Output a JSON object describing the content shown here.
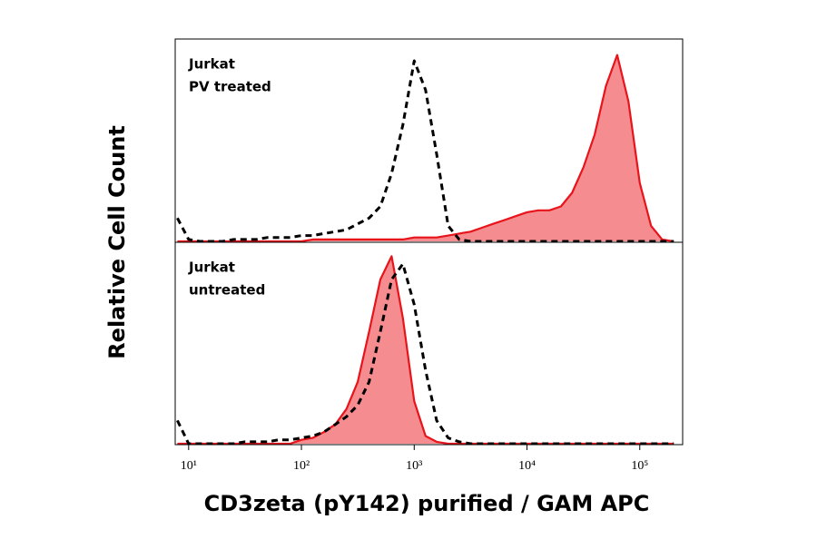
{
  "chart_data": [
    {
      "type": "line",
      "ylabel": "Relative Cell Count",
      "labels": [
        "Jurkat",
        "PV treated"
      ],
      "xscale": "log",
      "xlim": [
        7.6,
        240000
      ],
      "ylim": [
        0,
        100
      ],
      "x": [
        7.94,
        10,
        12.6,
        15.8,
        20,
        25.1,
        31.6,
        39.8,
        50.1,
        63.1,
        79.4,
        100,
        126,
        158,
        200,
        251,
        316,
        398,
        501,
        631,
        794,
        1000,
        1260,
        1580,
        2000,
        2510,
        3160,
        3980,
        5010,
        6310,
        7940,
        10000,
        12600,
        15800,
        20000,
        25100,
        31600,
        39800,
        50100,
        63100,
        79400,
        100000,
        126000,
        158000,
        200000
      ],
      "series": [
        {
          "color": "#e8141b",
          "fill": "#f58c8f",
          "values": [
            0,
            0,
            0,
            0,
            0,
            0,
            0,
            0,
            0,
            0,
            0,
            0,
            1,
            1,
            1,
            1,
            1,
            1,
            1,
            1,
            1,
            2,
            2,
            2,
            3,
            4,
            5,
            7,
            9,
            11,
            13,
            15,
            16,
            16,
            18,
            25,
            38,
            55,
            80,
            96,
            72,
            30,
            8,
            1,
            0
          ]
        },
        {
          "color": "#000000",
          "dash": true,
          "values": [
            12,
            1,
            0,
            0,
            0,
            1,
            1,
            1,
            2,
            2,
            2,
            3,
            3,
            4,
            5,
            6,
            9,
            12,
            18,
            35,
            60,
            93,
            78,
            45,
            8,
            1,
            0,
            0,
            0,
            0,
            0,
            0,
            0,
            0,
            0,
            0,
            0,
            0,
            0,
            0,
            0,
            0,
            0,
            0,
            0
          ]
        }
      ]
    },
    {
      "type": "line",
      "labels": [
        "Jurkat",
        "untreated"
      ],
      "xlabel": "CD3zeta (pY142) purified / GAM APC",
      "xscale": "log",
      "xlim": [
        7.6,
        240000
      ],
      "ylim": [
        0,
        100
      ],
      "xticks": [
        {
          "value": 10,
          "label": "10¹"
        },
        {
          "value": 100,
          "label": "10²"
        },
        {
          "value": 1000,
          "label": "10³"
        },
        {
          "value": 10000,
          "label": "10⁴"
        },
        {
          "value": 100000,
          "label": "10⁵"
        }
      ],
      "x": [
        7.94,
        10,
        12.6,
        15.8,
        20,
        25.1,
        31.6,
        39.8,
        50.1,
        63.1,
        79.4,
        100,
        126,
        158,
        200,
        251,
        316,
        398,
        501,
        631,
        794,
        1000,
        1260,
        1580,
        2000,
        2510,
        3160,
        3980,
        5010,
        6310,
        7940,
        10000,
        12600,
        15800,
        20000,
        25100,
        31600,
        39800,
        50100,
        63100,
        79400,
        100000,
        126000,
        158000,
        200000
      ],
      "series": [
        {
          "color": "#000000",
          "dash": true,
          "values": [
            12,
            0,
            0,
            0,
            0,
            0,
            1,
            1,
            1,
            2,
            2,
            3,
            4,
            6,
            10,
            14,
            20,
            32,
            58,
            85,
            93,
            72,
            38,
            12,
            3,
            1,
            0,
            0,
            0,
            0,
            0,
            0,
            0,
            0,
            0,
            0,
            0,
            0,
            0,
            0,
            0,
            0,
            0,
            0,
            0
          ]
        },
        {
          "color": "#e8141b",
          "fill": "#f58c8f",
          "values": [
            0,
            0,
            0,
            0,
            0,
            0,
            0,
            0,
            0,
            0,
            0,
            2,
            3,
            6,
            10,
            18,
            32,
            58,
            85,
            97,
            65,
            22,
            4,
            1,
            0,
            0,
            0,
            0,
            0,
            0,
            0,
            0,
            0,
            0,
            0,
            0,
            0,
            0,
            0,
            0,
            0,
            0,
            0,
            0,
            0
          ]
        }
      ]
    }
  ]
}
